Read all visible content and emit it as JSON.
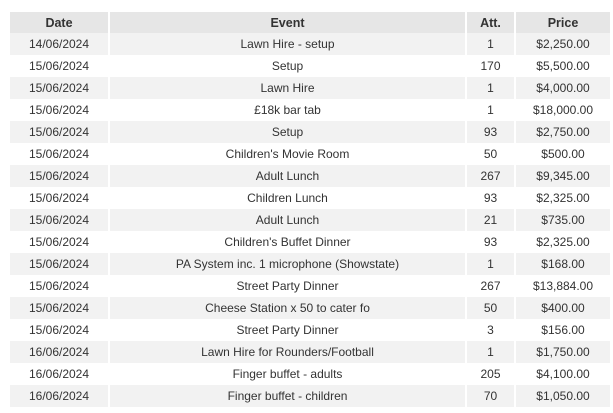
{
  "table": {
    "headers": {
      "date": "Date",
      "event": "Event",
      "att": "Att.",
      "price": "Price"
    },
    "rows": [
      {
        "date": "14/06/2024",
        "event": "Lawn Hire - setup",
        "att": "1",
        "price": "$2,250.00"
      },
      {
        "date": "15/06/2024",
        "event": "Setup",
        "att": "170",
        "price": "$5,500.00"
      },
      {
        "date": "15/06/2024",
        "event": "Lawn Hire",
        "att": "1",
        "price": "$4,000.00"
      },
      {
        "date": "15/06/2024",
        "event": "£18k bar tab",
        "att": "1",
        "price": "$18,000.00"
      },
      {
        "date": "15/06/2024",
        "event": "Setup",
        "att": "93",
        "price": "$2,750.00"
      },
      {
        "date": "15/06/2024",
        "event": "Children's Movie Room",
        "att": "50",
        "price": "$500.00"
      },
      {
        "date": "15/06/2024",
        "event": "Adult Lunch",
        "att": "267",
        "price": "$9,345.00"
      },
      {
        "date": "15/06/2024",
        "event": "Children Lunch",
        "att": "93",
        "price": "$2,325.00"
      },
      {
        "date": "15/06/2024",
        "event": "Adult Lunch",
        "att": "21",
        "price": "$735.00"
      },
      {
        "date": "15/06/2024",
        "event": "Children's Buffet Dinner",
        "att": "93",
        "price": "$2,325.00"
      },
      {
        "date": "15/06/2024",
        "event": "PA System inc. 1 microphone (Showstate)",
        "att": "1",
        "price": "$168.00"
      },
      {
        "date": "15/06/2024",
        "event": "Street Party Dinner",
        "att": "267",
        "price": "$13,884.00"
      },
      {
        "date": "15/06/2024",
        "event": "Cheese Station x 50 to cater fo",
        "att": "50",
        "price": "$400.00"
      },
      {
        "date": "15/06/2024",
        "event": "Street Party Dinner",
        "att": "3",
        "price": "$156.00"
      },
      {
        "date": "16/06/2024",
        "event": "Lawn Hire for Rounders/Football",
        "att": "1",
        "price": "$1,750.00"
      },
      {
        "date": "16/06/2024",
        "event": "Finger buffet - adults",
        "att": "205",
        "price": "$4,100.00"
      },
      {
        "date": "16/06/2024",
        "event": "Finger buffet - children",
        "att": "70",
        "price": "$1,050.00"
      }
    ]
  }
}
